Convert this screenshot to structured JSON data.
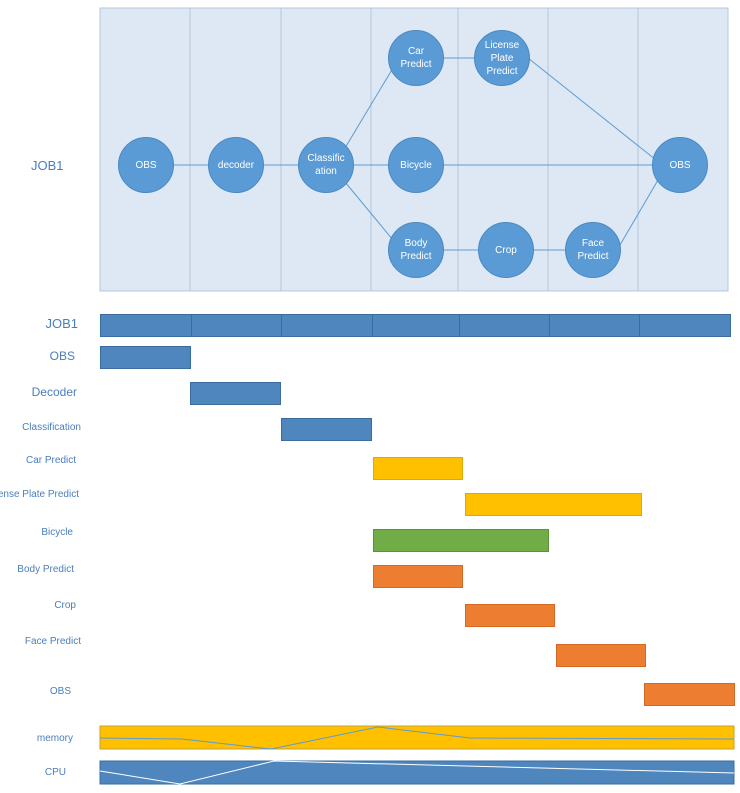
{
  "colors": {
    "panel_bg": "#dde8f4",
    "panel_border": "#b4c7de",
    "node_fill": "#5b9bd5",
    "edge": "#5b9bd5",
    "label": "#4a7ebb",
    "blue_bar": "#4e86bd",
    "yellow_bar": "#ffc000",
    "green_bar": "#70ad47",
    "orange_bar": "#ed7d31",
    "memory_fill": "#ffc000",
    "cpu_fill": "#4e86bd"
  },
  "flow": {
    "job_label": "JOB1",
    "nodes": {
      "obs_in": "OBS",
      "decoder": "decoder",
      "classification_l1": "Classific",
      "classification_l2": "ation",
      "car_l1": "Car",
      "car_l2": "Predict",
      "license_l1": "License",
      "license_l2": "Plate",
      "license_l3": "Predict",
      "bicycle": "Bicycle",
      "body_l1": "Body",
      "body_l2": "Predict",
      "crop": "Crop",
      "face_l1": "Face",
      "face_l2": "Predict",
      "obs_out": "OBS"
    }
  },
  "timeline": {
    "rows": {
      "job1": "JOB1",
      "obs": "OBS",
      "decoder": "Decoder",
      "classification": "Classification",
      "car_predict": "Car Predict",
      "license_plate_predict": "License Plate Predict",
      "bicycle": "Bicycle",
      "body_predict": "Body Predict",
      "crop": "Crop",
      "face_predict": "Face Predict",
      "obs_end": "OBS",
      "memory": "memory",
      "cpu": "CPU"
    }
  }
}
